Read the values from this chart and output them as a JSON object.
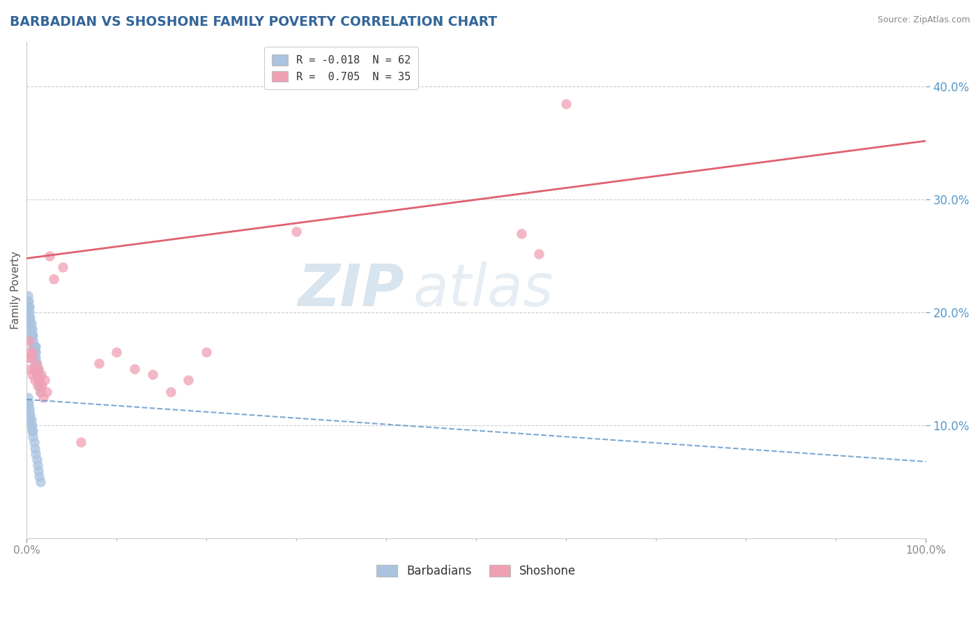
{
  "title": "BARBADIAN VS SHOSHONE FAMILY POVERTY CORRELATION CHART",
  "source": "Source: ZipAtlas.com",
  "ylabel": "Family Poverty",
  "xlim": [
    0,
    1.0
  ],
  "ylim": [
    0.0,
    0.44
  ],
  "y_ticks": [
    0.1,
    0.2,
    0.3,
    0.4
  ],
  "legend_labels": [
    "R = -0.018  N = 62",
    "R =  0.705  N = 35"
  ],
  "barbadians_color": "#aac4e0",
  "shoshone_color": "#f0a0b4",
  "blue_line_color": "#6699cc",
  "pink_line_color": "#e06070",
  "grid_color": "#cccccc",
  "background_color": "#ffffff",
  "watermark_zip": "ZIP",
  "watermark_atlas": "atlas",
  "blue_line_x0": 0.0,
  "blue_line_y0": 0.123,
  "blue_line_x1": 1.0,
  "blue_line_y1": 0.068,
  "pink_line_x0": 0.0,
  "pink_line_y0": 0.248,
  "pink_line_x1": 1.0,
  "pink_line_y1": 0.352,
  "barbadians_x": [
    0.001,
    0.001,
    0.001,
    0.002,
    0.002,
    0.002,
    0.003,
    0.003,
    0.003,
    0.004,
    0.004,
    0.004,
    0.005,
    0.005,
    0.005,
    0.006,
    0.006,
    0.006,
    0.007,
    0.007,
    0.007,
    0.008,
    0.008,
    0.009,
    0.009,
    0.009,
    0.01,
    0.01,
    0.01,
    0.01,
    0.011,
    0.011,
    0.012,
    0.012,
    0.013,
    0.013,
    0.014,
    0.014,
    0.015,
    0.015,
    0.001,
    0.001,
    0.002,
    0.002,
    0.003,
    0.003,
    0.004,
    0.004,
    0.005,
    0.005,
    0.006,
    0.006,
    0.007,
    0.007,
    0.008,
    0.009,
    0.01,
    0.011,
    0.012,
    0.013,
    0.014,
    0.015
  ],
  "barbadians_y": [
    0.205,
    0.21,
    0.215,
    0.2,
    0.205,
    0.21,
    0.195,
    0.2,
    0.205,
    0.185,
    0.19,
    0.195,
    0.18,
    0.185,
    0.19,
    0.175,
    0.18,
    0.185,
    0.17,
    0.175,
    0.18,
    0.165,
    0.17,
    0.16,
    0.165,
    0.17,
    0.155,
    0.16,
    0.165,
    0.17,
    0.15,
    0.155,
    0.145,
    0.15,
    0.14,
    0.145,
    0.135,
    0.14,
    0.13,
    0.135,
    0.12,
    0.125,
    0.115,
    0.12,
    0.11,
    0.115,
    0.105,
    0.11,
    0.1,
    0.105,
    0.095,
    0.1,
    0.09,
    0.095,
    0.085,
    0.08,
    0.075,
    0.07,
    0.065,
    0.06,
    0.055,
    0.05
  ],
  "shoshone_x": [
    0.001,
    0.002,
    0.003,
    0.004,
    0.005,
    0.006,
    0.007,
    0.008,
    0.009,
    0.01,
    0.011,
    0.012,
    0.013,
    0.014,
    0.015,
    0.016,
    0.017,
    0.018,
    0.02,
    0.022,
    0.025,
    0.03,
    0.04,
    0.06,
    0.08,
    0.1,
    0.12,
    0.14,
    0.16,
    0.18,
    0.2,
    0.3,
    0.55,
    0.57,
    0.6
  ],
  "shoshone_y": [
    0.165,
    0.16,
    0.175,
    0.15,
    0.16,
    0.145,
    0.165,
    0.15,
    0.14,
    0.155,
    0.145,
    0.135,
    0.15,
    0.14,
    0.13,
    0.145,
    0.135,
    0.125,
    0.14,
    0.13,
    0.25,
    0.23,
    0.24,
    0.085,
    0.155,
    0.165,
    0.15,
    0.145,
    0.13,
    0.14,
    0.165,
    0.272,
    0.27,
    0.252,
    0.385
  ]
}
